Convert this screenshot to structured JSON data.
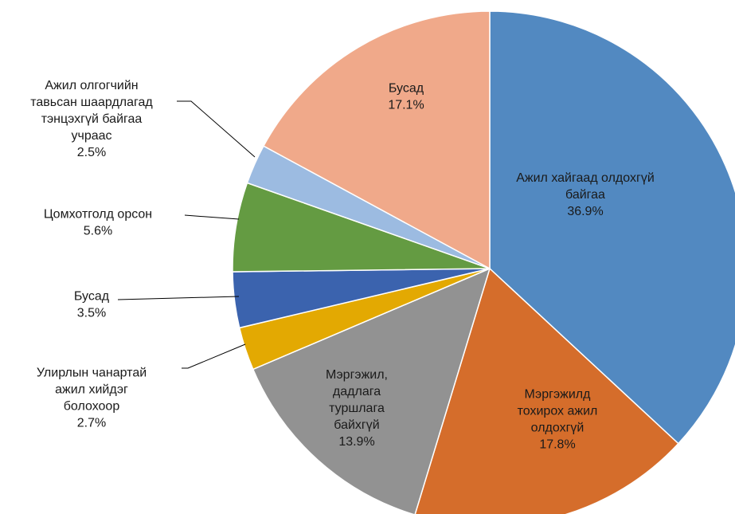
{
  "chart_data": {
    "type": "pie",
    "categories": [
      "Ажил хайгаад олдохгүй байгаа",
      "Мэргэжилд тохирох ажил олдохгүй",
      "Мэргэжил, дадлага туршлага байхгүй",
      "Улирлын чанартай ажил хийдэг болохоор",
      "Бусад",
      "Цомхотголд орсон",
      "Ажил олгогчийн тавьсан шаардлагад тэнцэхгүй байгаа учраас",
      "Бусад"
    ],
    "values": [
      36.9,
      17.8,
      13.9,
      2.7,
      3.5,
      5.6,
      2.5,
      17.1
    ],
    "value_labels": [
      "36.9%",
      "17.8%",
      "13.9%",
      "2.7%",
      "3.5%",
      "5.6%",
      "2.5%",
      "17.1%"
    ],
    "colors": [
      "#5289c1",
      "#d56d2b",
      "#929292",
      "#e3a902",
      "#3b63ae",
      "#649b42",
      "#9cbbe1",
      "#f0a98a"
    ]
  }
}
